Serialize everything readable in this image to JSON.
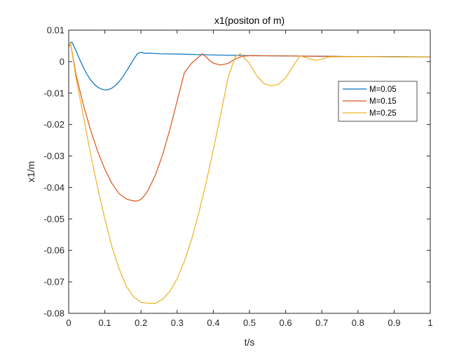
{
  "chart_data": {
    "type": "line",
    "title": "x1(positon of m)",
    "xlabel": "t/s",
    "ylabel": "x1/m",
    "xlim": [
      0,
      1
    ],
    "ylim": [
      -0.08,
      0.01
    ],
    "xticks": [
      "0",
      "0.1",
      "0.2",
      "0.3",
      "0.4",
      "0.5",
      "0.6",
      "0.7",
      "0.8",
      "0.9",
      "1"
    ],
    "yticks": [
      "0.01",
      "0",
      "-0.01",
      "-0.02",
      "-0.03",
      "-0.04",
      "-0.05",
      "-0.06",
      "-0.07",
      "-0.08"
    ],
    "grid": false,
    "legend_position": "top-right",
    "series": [
      {
        "name": "M=0.05",
        "color": "#0072BD",
        "x": [
          0,
          0.005,
          0.01,
          0.02,
          0.03,
          0.04,
          0.05,
          0.06,
          0.07,
          0.08,
          0.09,
          0.1,
          0.11,
          0.12,
          0.13,
          0.14,
          0.15,
          0.16,
          0.17,
          0.18,
          0.19,
          0.2,
          0.205,
          0.21,
          0.22,
          0.25,
          0.3,
          0.4,
          0.5,
          0.6,
          0.7,
          0.8,
          0.9,
          1.0
        ],
        "y": [
          0.0045,
          0.0062,
          0.006,
          0.0035,
          0.0008,
          -0.0017,
          -0.0039,
          -0.0057,
          -0.0071,
          -0.0081,
          -0.0087,
          -0.009,
          -0.0089,
          -0.0084,
          -0.0075,
          -0.0063,
          -0.0048,
          -0.003,
          -0.0011,
          0.0008,
          0.0025,
          0.003,
          0.0028,
          0.0026,
          0.0027,
          0.0025,
          0.0024,
          0.0021,
          0.0019,
          0.0018,
          0.0017,
          0.0016,
          0.0016,
          0.0015
        ]
      },
      {
        "name": "M=0.15",
        "color": "#D95319",
        "x": [
          0,
          0.005,
          0.02,
          0.04,
          0.06,
          0.08,
          0.1,
          0.12,
          0.14,
          0.16,
          0.18,
          0.19,
          0.2,
          0.21,
          0.22,
          0.24,
          0.26,
          0.28,
          0.3,
          0.32,
          0.34,
          0.36,
          0.37,
          0.38,
          0.39,
          0.4,
          0.42,
          0.44,
          0.46,
          0.48,
          0.5,
          0.6,
          0.7,
          0.8,
          0.9,
          1.0
        ],
        "y": [
          0.0045,
          0.006,
          -0.004,
          -0.0135,
          -0.0215,
          -0.0285,
          -0.0342,
          -0.0388,
          -0.042,
          -0.0437,
          -0.0443,
          -0.0443,
          -0.0438,
          -0.0425,
          -0.0408,
          -0.036,
          -0.0295,
          -0.0215,
          -0.0125,
          -0.0035,
          -0.0005,
          0.0015,
          0.0025,
          0.0015,
          0.0003,
          -0.0005,
          -0.0011,
          -0.0006,
          0.0008,
          0.0017,
          0.0019,
          0.0018,
          0.0017,
          0.0016,
          0.0015,
          0.0015
        ]
      },
      {
        "name": "M=0.25",
        "color": "#EDB120",
        "x": [
          0,
          0.005,
          0.02,
          0.04,
          0.06,
          0.08,
          0.1,
          0.12,
          0.14,
          0.16,
          0.18,
          0.2,
          0.22,
          0.24,
          0.26,
          0.28,
          0.3,
          0.32,
          0.34,
          0.36,
          0.38,
          0.4,
          0.42,
          0.44,
          0.46,
          0.475,
          0.48,
          0.5,
          0.52,
          0.54,
          0.56,
          0.58,
          0.6,
          0.62,
          0.64,
          0.66,
          0.68,
          0.7,
          0.72,
          0.8,
          0.9,
          1.0
        ],
        "y": [
          0.0045,
          0.006,
          -0.005,
          -0.017,
          -0.029,
          -0.04,
          -0.05,
          -0.059,
          -0.066,
          -0.0715,
          -0.0748,
          -0.0765,
          -0.0768,
          -0.0768,
          -0.0755,
          -0.073,
          -0.069,
          -0.0635,
          -0.0565,
          -0.048,
          -0.0385,
          -0.028,
          -0.017,
          -0.0055,
          0.0015,
          0.0025,
          0.0018,
          -0.0005,
          -0.0045,
          -0.007,
          -0.0077,
          -0.0072,
          -0.0052,
          -0.0015,
          0.0018,
          0.0012,
          0.0004,
          0.0008,
          0.0015,
          0.0016,
          0.0015,
          0.0015
        ]
      }
    ]
  }
}
